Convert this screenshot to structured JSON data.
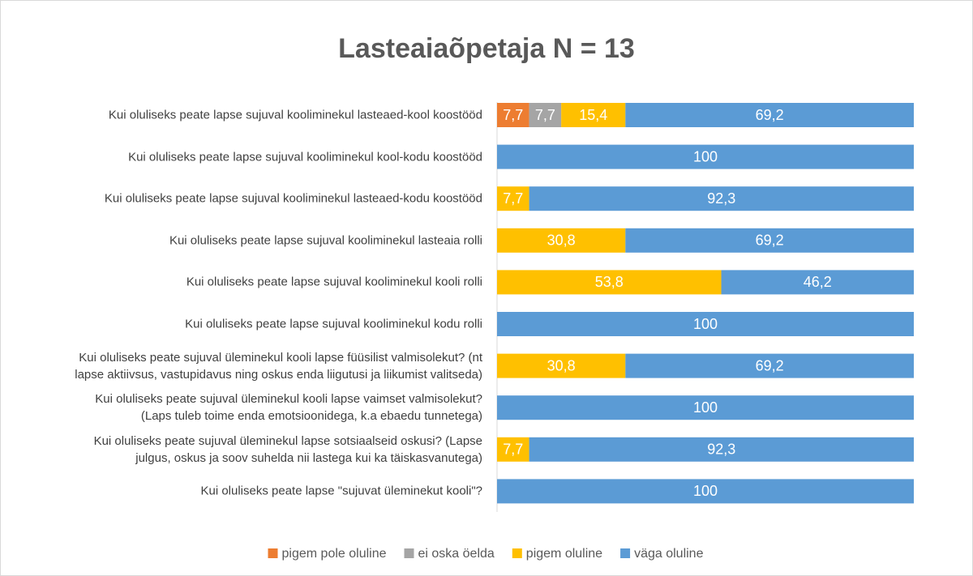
{
  "chart_data": {
    "type": "stacked-bar-horizontal",
    "title": "Lasteaiaõpetaja N = 13",
    "categories": [
      "Kui oluliseks peate lapse sujuval kooliminekul lasteaed-kool koostööd",
      "Kui oluliseks peate lapse sujuval kooliminekul kool-kodu koostööd",
      "Kui oluliseks peate lapse sujuval kooliminekul lasteaed-kodu koostööd",
      "Kui oluliseks peate lapse sujuval kooliminekul lasteaia rolli",
      "Kui oluliseks peate lapse sujuval kooliminekul kooli rolli",
      "Kui oluliseks peate lapse sujuval kooliminekul kodu rolli",
      "Kui oluliseks peate sujuval üleminekul kooli lapse füüsilist valmisolekut? (nt\nlapse aktiivsus, vastupidavus ning oskus enda liigutusi ja liikumist valitseda)",
      "Kui oluliseks peate sujuval üleminekul kooli lapse vaimset valmisolekut?\n(Laps tuleb toime enda emotsioonidega, k.a ebaedu tunnetega)",
      "Kui oluliseks peate sujuval üleminekul lapse sotsiaalseid oskusi? (Lapse\njulgus, oskus ja soov suhelda nii lastega kui ka täiskasvanutega)",
      "Kui oluliseks peate lapse \"sujuvat üleminekut kooli\"?"
    ],
    "series": [
      {
        "name": "pigem pole oluline",
        "color": "#ED7D31",
        "values": [
          7.7,
          null,
          null,
          null,
          null,
          null,
          null,
          null,
          null,
          null
        ],
        "value_labels": [
          "7,7",
          null,
          null,
          null,
          null,
          null,
          null,
          null,
          null,
          null
        ]
      },
      {
        "name": "ei oska öelda",
        "color": "#A5A5A5",
        "values": [
          7.7,
          null,
          null,
          null,
          null,
          null,
          null,
          null,
          null,
          null
        ],
        "value_labels": [
          "7,7",
          null,
          null,
          null,
          null,
          null,
          null,
          null,
          null,
          null
        ]
      },
      {
        "name": "pigem oluline",
        "color": "#FFC000",
        "values": [
          15.4,
          null,
          7.7,
          30.8,
          53.8,
          null,
          30.8,
          null,
          7.7,
          null
        ],
        "value_labels": [
          "15,4",
          null,
          "7,7",
          "30,8",
          "53,8",
          null,
          "30,8",
          null,
          "7,7",
          null
        ]
      },
      {
        "name": "väga oluline",
        "color": "#5B9BD5",
        "values": [
          69.2,
          100,
          92.3,
          69.2,
          46.2,
          100,
          69.2,
          100,
          92.3,
          100
        ],
        "value_labels": [
          "69,2",
          "100",
          "92,3",
          "69,2",
          "46,2",
          "100",
          "69,2",
          "100",
          "92,3",
          "100"
        ]
      }
    ],
    "xlim": [
      0,
      100
    ]
  }
}
